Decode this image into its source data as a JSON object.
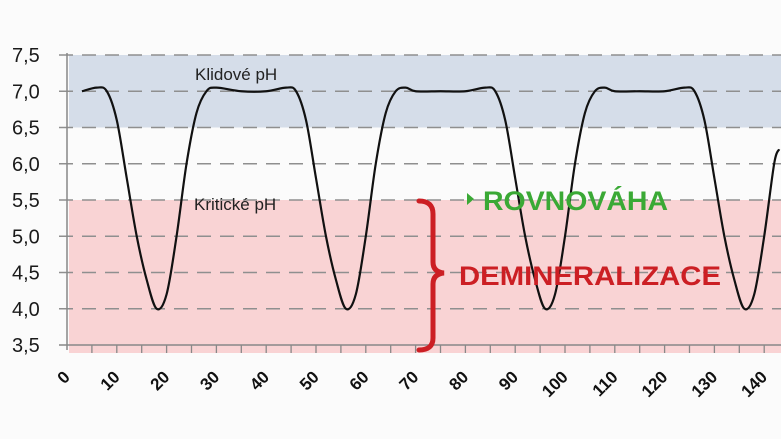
{
  "chart_data": {
    "type": "line",
    "title": "",
    "xlabel": "",
    "ylabel": "",
    "xlim": [
      0,
      143
    ],
    "ylim": [
      3.5,
      7.5
    ],
    "grid": "horizontal dashed",
    "y_ticks": [
      "7,5",
      "7,0",
      "6,5",
      "6,0",
      "5,5",
      "5,0",
      "4,5",
      "4,0",
      "3,5"
    ],
    "y_tick_values": [
      7.5,
      7.0,
      6.5,
      6.0,
      5.5,
      5.0,
      4.5,
      4.0,
      3.5
    ],
    "x_ticks": [
      "0",
      "10",
      "20",
      "30",
      "40",
      "50",
      "60",
      "70",
      "80",
      "90",
      "100",
      "110",
      "120",
      "130",
      "140"
    ],
    "x_tick_values": [
      0,
      10,
      20,
      30,
      40,
      50,
      60,
      70,
      80,
      90,
      100,
      110,
      120,
      130,
      140
    ],
    "series": [
      {
        "name": "pH",
        "x": [
          3,
          6,
          8,
          10,
          12,
          14,
          16,
          18,
          20,
          22,
          24,
          26,
          28,
          30,
          35,
          40,
          44,
          46,
          48,
          50,
          52,
          54,
          56,
          58,
          60,
          62,
          64,
          66,
          68,
          70,
          75,
          80,
          84,
          86,
          88,
          90,
          92,
          94,
          96,
          98,
          100,
          102,
          104,
          106,
          108,
          110,
          115,
          120,
          124,
          126,
          128,
          130,
          132,
          134,
          136,
          138,
          140,
          142,
          143
        ],
        "values": [
          7.0,
          7.05,
          7.0,
          6.6,
          5.8,
          5.0,
          4.4,
          4.0,
          4.2,
          5.0,
          6.0,
          6.7,
          7.0,
          7.05,
          7.0,
          7.0,
          7.05,
          7.0,
          6.6,
          5.8,
          5.0,
          4.4,
          4.0,
          4.2,
          5.0,
          6.0,
          6.7,
          7.0,
          7.05,
          7.0,
          7.0,
          7.0,
          7.05,
          7.0,
          6.6,
          5.8,
          5.0,
          4.4,
          4.0,
          4.2,
          5.0,
          6.0,
          6.7,
          7.0,
          7.05,
          7.0,
          7.0,
          7.0,
          7.05,
          7.0,
          6.6,
          5.8,
          5.0,
          4.4,
          4.0,
          4.2,
          5.0,
          6.0,
          6.2
        ]
      }
    ],
    "bands": [
      {
        "name": "Klidové pH",
        "from": 6.5,
        "to": 7.5,
        "color": "#d5dde9"
      },
      {
        "name": "Kritické pH",
        "from": 3.5,
        "to": 5.5,
        "color": "#f9d3d4"
      }
    ],
    "annotations": [
      {
        "text": "Klidové pH",
        "x": 33,
        "y": 7.25
      },
      {
        "text": "Kritické pH",
        "x": 33,
        "y": 5.5
      },
      {
        "text": "ROVNOVÁHA",
        "x": 82,
        "y": 5.5,
        "color": "#3aa935"
      },
      {
        "text": "DEMINERALIZACE",
        "x": 82,
        "y": 4.5,
        "color": "#cc1f24"
      }
    ],
    "legend": "none"
  },
  "labels": {
    "rest_ph": "Klidové pH",
    "critical_ph": "Kritické pH",
    "equilibrium": "ROVNOVÁHA",
    "demineralization": "DEMINERALIZACE"
  },
  "colors": {
    "rest_band": "#d5dde9",
    "critical_band": "#f9d3d4",
    "grid": "#8f8f8f",
    "curve": "#111111",
    "green": "#3aa935",
    "red": "#cc1f24"
  }
}
